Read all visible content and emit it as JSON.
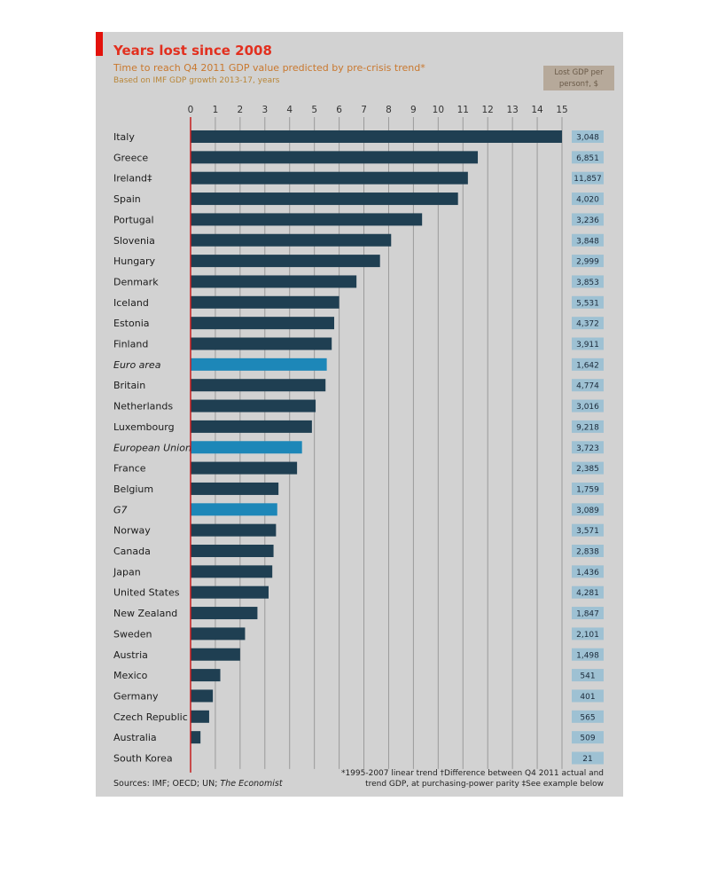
{
  "chart_data": {
    "type": "bar",
    "orientation": "horizontal",
    "title": "Years lost since 2008",
    "subtitle": "Time to reach Q4 2011 GDP value predicted by pre-crisis trend*",
    "subtitle2": "Based on IMF GDP growth 2013-17, years",
    "value_column_header": "Lost GDP per person†, $",
    "xlim": [
      0,
      15
    ],
    "ticks": [
      "0",
      "1",
      "2",
      "3",
      "4",
      "5",
      "6",
      "7",
      "8",
      "9",
      "10",
      "11",
      "12",
      "13",
      "14",
      "15"
    ],
    "grid": true,
    "categories": [
      "Italy",
      "Greece",
      "Ireland‡",
      "Spain",
      "Portugal",
      "Slovenia",
      "Hungary",
      "Denmark",
      "Iceland",
      "Estonia",
      "Finland",
      "Euro area",
      "Britain",
      "Netherlands",
      "Luxembourg",
      "European Union",
      "France",
      "Belgium",
      "G7",
      "Norway",
      "Canada",
      "Japan",
      "United States",
      "New Zealand",
      "Sweden",
      "Austria",
      "Mexico",
      "Germany",
      "Czech Republic",
      "Australia",
      "South Korea"
    ],
    "values": [
      15.0,
      11.6,
      11.2,
      10.8,
      9.35,
      8.1,
      7.65,
      6.7,
      6.0,
      5.8,
      5.7,
      5.5,
      5.45,
      5.05,
      4.9,
      4.5,
      4.3,
      3.55,
      3.5,
      3.45,
      3.35,
      3.3,
      3.15,
      2.7,
      2.2,
      2.0,
      1.2,
      0.9,
      0.75,
      0.4,
      0.0
    ],
    "aggregates": [
      "Euro area",
      "European Union",
      "G7"
    ],
    "lost_gdp_per_person": [
      "3,048",
      "6,851",
      "11,857",
      "4,020",
      "3,236",
      "3,848",
      "2,999",
      "3,853",
      "5,531",
      "4,372",
      "3,911",
      "1,642",
      "4,774",
      "3,016",
      "9,218",
      "3,723",
      "2,385",
      "1,759",
      "3,089",
      "3,571",
      "2,838",
      "1,436",
      "4,281",
      "1,847",
      "2,101",
      "1,498",
      "541",
      "401",
      "565",
      "509",
      "21"
    ],
    "colors": {
      "bar": "#1f3f52",
      "aggregate_bar": "#1d87b8",
      "axis_line": "#c41c1c",
      "value_box": "#9ec1d3",
      "panel": "#d2d2d2"
    },
    "footnote_line1": "*1995-2007 linear trend   †Difference between Q4 2011 actual and",
    "footnote_line2": "trend GDP, at purchasing-power parity  ‡See example below",
    "sources_text": "Sources: IMF; OECD; UN; ",
    "sources_italic": "The Economist"
  }
}
